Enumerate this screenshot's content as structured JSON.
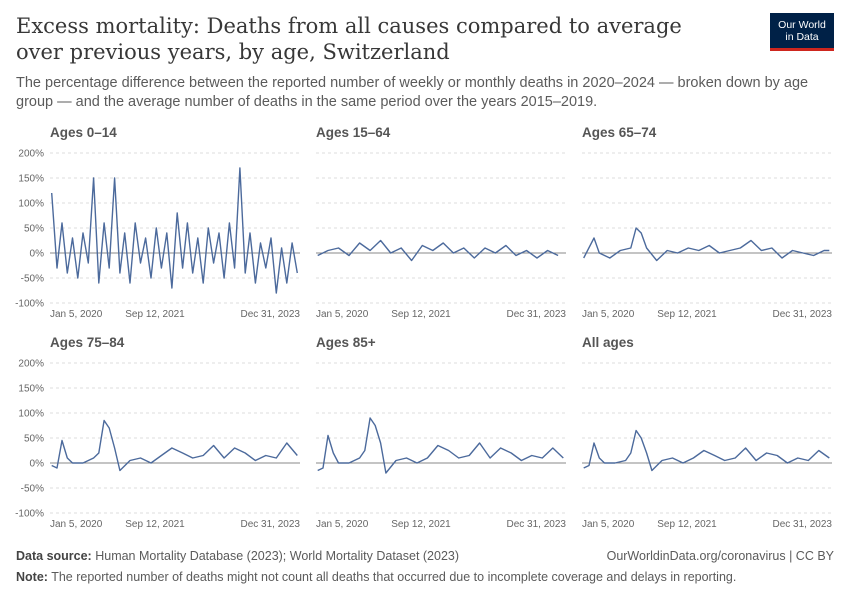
{
  "title": "Excess mortality: Deaths from all causes compared to average over previous years, by age, Switzerland",
  "subtitle": "The percentage difference between the reported number of weekly or monthly deaths in 2020–2024 — broken down by age group — and the average number of deaths in the same period over the years 2015–2019.",
  "logo": {
    "line1": "Our World",
    "line2": "in Data"
  },
  "footer": {
    "source_label": "Data source:",
    "source_text": "Human Mortality Database (2023); World Mortality Dataset (2023)",
    "right_text": "OurWorldinData.org/coronavirus | CC BY",
    "note_label": "Note:",
    "note_text": "The reported number of deaths might not count all deaths that occurred due to incomplete coverage and delays in reporting."
  },
  "colors": {
    "line": "#4c6a9c",
    "grid": "#dddddd",
    "zero": "#8a8a8a"
  },
  "chart_data": {
    "type": "line",
    "unit": "%",
    "y_ticks": [
      "200%",
      "150%",
      "100%",
      "50%",
      "0%",
      "-50%",
      "-100%"
    ],
    "y_values": [
      200,
      150,
      100,
      50,
      0,
      -50,
      -100
    ],
    "ylim": [
      -100,
      200
    ],
    "x_ticks": [
      "Jan 5, 2020",
      "Sep 12, 2021",
      "Dec 31, 2023"
    ],
    "x_range": [
      "2020-01-05",
      "2023-12-31"
    ],
    "grid": true,
    "panels": [
      {
        "title": "Ages 0–14",
        "x": [
          "2020-01",
          "2020-02",
          "2020-03",
          "2020-04",
          "2020-05",
          "2020-06",
          "2020-07",
          "2020-08",
          "2020-09",
          "2020-10",
          "2020-11",
          "2020-12",
          "2021-01",
          "2021-02",
          "2021-03",
          "2021-04",
          "2021-05",
          "2021-06",
          "2021-07",
          "2021-08",
          "2021-09",
          "2021-10",
          "2021-11",
          "2021-12",
          "2022-01",
          "2022-02",
          "2022-03",
          "2022-04",
          "2022-05",
          "2022-06",
          "2022-07",
          "2022-08",
          "2022-09",
          "2022-10",
          "2022-11",
          "2022-12",
          "2023-01",
          "2023-02",
          "2023-03",
          "2023-04",
          "2023-05",
          "2023-06",
          "2023-07",
          "2023-08",
          "2023-09",
          "2023-10",
          "2023-11",
          "2023-12"
        ],
        "values": [
          120,
          -30,
          60,
          -40,
          30,
          -50,
          40,
          -20,
          150,
          -60,
          60,
          -30,
          150,
          -40,
          40,
          -60,
          60,
          -20,
          30,
          -50,
          50,
          -30,
          40,
          -70,
          80,
          -30,
          60,
          -40,
          30,
          -60,
          50,
          -20,
          40,
          -50,
          60,
          -30,
          170,
          -40,
          40,
          -60,
          20,
          -30,
          30,
          -80,
          10,
          -60,
          20,
          -40
        ]
      },
      {
        "title": "Ages 15–64",
        "x": [
          "2020-01",
          "2020-03",
          "2020-05",
          "2020-07",
          "2020-09",
          "2020-11",
          "2021-01",
          "2021-03",
          "2021-05",
          "2021-07",
          "2021-09",
          "2021-11",
          "2022-01",
          "2022-03",
          "2022-05",
          "2022-07",
          "2022-09",
          "2022-11",
          "2023-01",
          "2023-03",
          "2023-05",
          "2023-07",
          "2023-09",
          "2023-11"
        ],
        "values": [
          -5,
          5,
          10,
          -5,
          20,
          5,
          25,
          0,
          10,
          -15,
          15,
          5,
          20,
          0,
          10,
          -10,
          10,
          0,
          15,
          -5,
          5,
          -10,
          5,
          -5
        ]
      },
      {
        "title": "Ages 65–74",
        "x": [
          "2020-01",
          "2020-03",
          "2020-04",
          "2020-06",
          "2020-08",
          "2020-10",
          "2020-11",
          "2020-12",
          "2021-01",
          "2021-03",
          "2021-05",
          "2021-07",
          "2021-09",
          "2021-11",
          "2022-01",
          "2022-03",
          "2022-05",
          "2022-07",
          "2022-09",
          "2022-11",
          "2023-01",
          "2023-03",
          "2023-05",
          "2023-07",
          "2023-09",
          "2023-11",
          "2023-12"
        ],
        "values": [
          -10,
          30,
          0,
          -10,
          5,
          10,
          50,
          40,
          10,
          -15,
          5,
          0,
          10,
          5,
          15,
          0,
          5,
          10,
          25,
          5,
          10,
          -10,
          5,
          0,
          -5,
          5,
          5
        ]
      },
      {
        "title": "Ages 75–84",
        "x": [
          "2020-01",
          "2020-02",
          "2020-03",
          "2020-04",
          "2020-05",
          "2020-07",
          "2020-09",
          "2020-10",
          "2020-11",
          "2020-12",
          "2021-01",
          "2021-02",
          "2021-04",
          "2021-06",
          "2021-08",
          "2021-10",
          "2021-12",
          "2022-02",
          "2022-04",
          "2022-06",
          "2022-08",
          "2022-10",
          "2022-12",
          "2023-02",
          "2023-04",
          "2023-06",
          "2023-08",
          "2023-10",
          "2023-12"
        ],
        "values": [
          -5,
          -10,
          45,
          10,
          0,
          0,
          10,
          20,
          85,
          70,
          30,
          -15,
          5,
          10,
          0,
          15,
          30,
          20,
          10,
          15,
          35,
          10,
          30,
          20,
          5,
          15,
          10,
          40,
          15
        ]
      },
      {
        "title": "Ages 85+",
        "x": [
          "2020-01",
          "2020-02",
          "2020-03",
          "2020-04",
          "2020-05",
          "2020-07",
          "2020-09",
          "2020-10",
          "2020-11",
          "2020-12",
          "2021-01",
          "2021-02",
          "2021-04",
          "2021-06",
          "2021-08",
          "2021-10",
          "2021-12",
          "2022-02",
          "2022-04",
          "2022-06",
          "2022-08",
          "2022-10",
          "2022-12",
          "2023-02",
          "2023-04",
          "2023-06",
          "2023-08",
          "2023-10",
          "2023-12"
        ],
        "values": [
          -15,
          -10,
          55,
          20,
          0,
          0,
          10,
          25,
          90,
          75,
          40,
          -20,
          5,
          10,
          0,
          10,
          35,
          25,
          10,
          15,
          40,
          10,
          30,
          20,
          5,
          15,
          10,
          30,
          10
        ]
      },
      {
        "title": "All ages",
        "x": [
          "2020-01",
          "2020-02",
          "2020-03",
          "2020-04",
          "2020-05",
          "2020-07",
          "2020-09",
          "2020-10",
          "2020-11",
          "2020-12",
          "2021-01",
          "2021-02",
          "2021-04",
          "2021-06",
          "2021-08",
          "2021-10",
          "2021-12",
          "2022-02",
          "2022-04",
          "2022-06",
          "2022-08",
          "2022-10",
          "2022-12",
          "2023-02",
          "2023-04",
          "2023-06",
          "2023-08",
          "2023-10",
          "2023-12"
        ],
        "values": [
          -10,
          -5,
          40,
          10,
          0,
          0,
          5,
          20,
          65,
          50,
          20,
          -15,
          5,
          10,
          0,
          10,
          25,
          15,
          5,
          10,
          30,
          5,
          20,
          15,
          0,
          10,
          5,
          25,
          10
        ]
      }
    ]
  }
}
